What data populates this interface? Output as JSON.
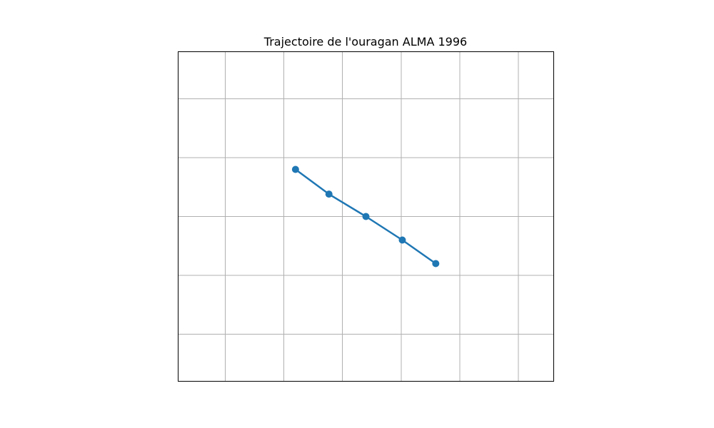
{
  "chart_data": {
    "type": "line",
    "title": "Trajectoire de l'ouragan ALMA 1996",
    "xlabel": "",
    "ylabel": "",
    "xlim": [
      0,
      6.4
    ],
    "ylim": [
      0,
      5.6
    ],
    "xgrid": [
      0.8,
      1.8,
      2.8,
      3.8,
      4.8,
      5.8
    ],
    "ygrid": [
      0.8,
      1.8,
      2.8,
      3.8,
      4.8
    ],
    "grid": true,
    "axis_ticks": false,
    "legend": "none",
    "series": [
      {
        "color": "#1f77b4",
        "marker": "circle",
        "points": [
          {
            "x": 2.0,
            "y": 3.6
          },
          {
            "x": 2.57,
            "y": 3.18
          },
          {
            "x": 3.2,
            "y": 2.8
          },
          {
            "x": 3.82,
            "y": 2.4
          },
          {
            "x": 4.39,
            "y": 2.0
          }
        ]
      }
    ]
  }
}
